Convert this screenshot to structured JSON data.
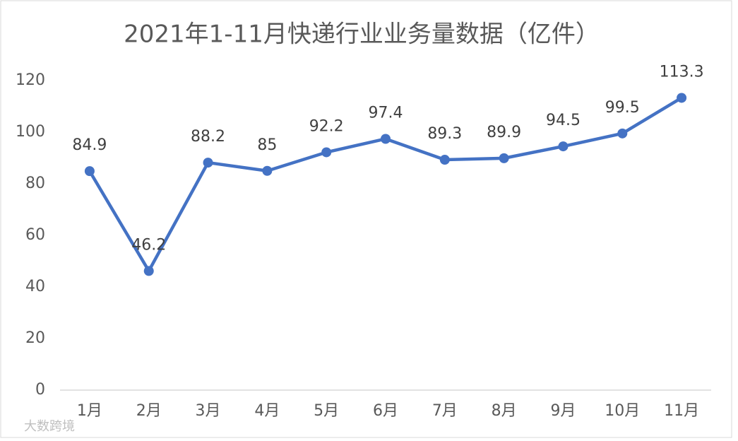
{
  "chart_data": {
    "type": "line",
    "title": "2021年1-11月快递行业业务量数据（亿件）",
    "categories": [
      "1月",
      "2月",
      "3月",
      "4月",
      "5月",
      "6月",
      "7月",
      "8月",
      "9月",
      "10月",
      "11月"
    ],
    "values": [
      84.9,
      46.2,
      88.2,
      85,
      92.2,
      97.4,
      89.3,
      89.9,
      94.5,
      99.5,
      113.3
    ],
    "color": "#4472c4",
    "ylim": [
      0,
      120
    ],
    "yticks": [
      0,
      20,
      40,
      60,
      80,
      100,
      120
    ],
    "grid": false,
    "watermark": "大数跨境"
  }
}
